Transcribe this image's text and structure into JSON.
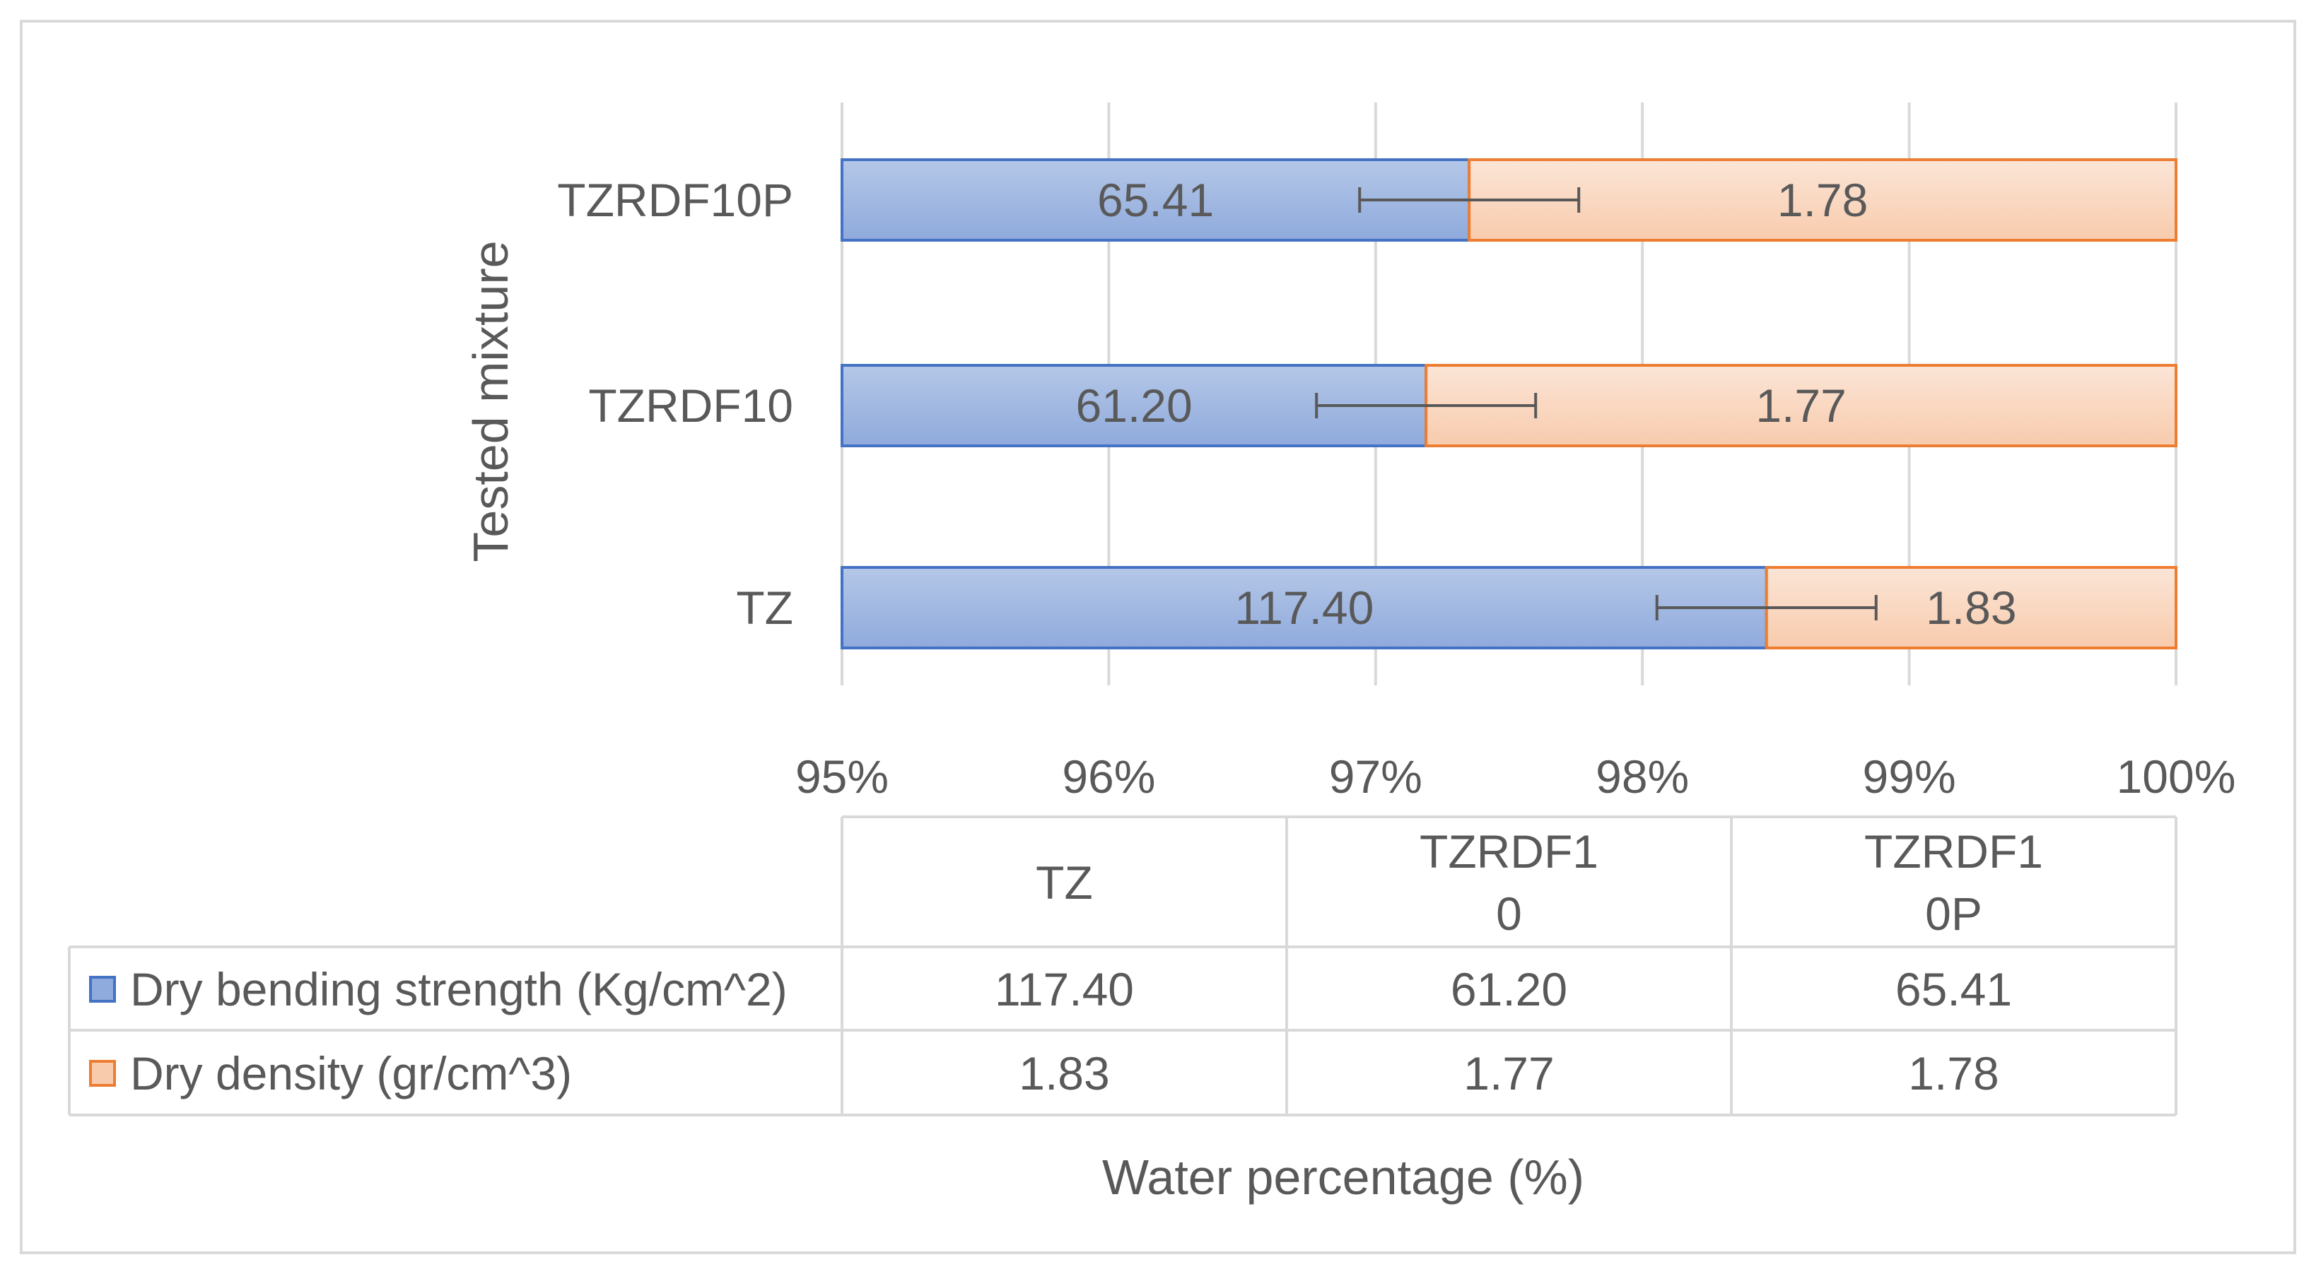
{
  "chart_data": {
    "type": "bar",
    "orientation": "horizontal",
    "stacked": "percent",
    "title": "",
    "xlabel": "Water percentage (%)",
    "ylabel": "Tested mixture",
    "xlim": [
      0.95,
      1.0
    ],
    "x_ticks": [
      "95%",
      "96%",
      "97%",
      "98%",
      "99%",
      "100%"
    ],
    "categories": [
      "TZ",
      "TZRDF10",
      "TZRDF10P"
    ],
    "series": [
      {
        "name": "Dry bending strength (Kg/cm^2)",
        "values": [
          117.4,
          61.2,
          65.41
        ],
        "labels": [
          "117.40",
          "61.20",
          "65.41"
        ],
        "color": "#4472c4",
        "fill_light": "#b4c7e7",
        "fill_dark": "#8faadc"
      },
      {
        "name": "Dry density (gr/cm^3)",
        "values": [
          1.83,
          1.77,
          1.78
        ],
        "labels": [
          "1.83",
          "1.77",
          "1.78"
        ],
        "color": "#ed7d31",
        "fill_light": "#fbe5d6",
        "fill_dark": "#f8cbad"
      }
    ],
    "error_bars": true,
    "grid": true,
    "data_table": {
      "columns": [
        [
          "TZ"
        ],
        [
          "TZRDF1",
          "0"
        ],
        [
          "TZRDF1",
          "0P"
        ]
      ],
      "rows": [
        {
          "legend": "Dry bending strength (Kg/cm^2)",
          "values": [
            "117.40",
            "61.20",
            "65.41"
          ]
        },
        {
          "legend": "Dry density (gr/cm^3)",
          "values": [
            "1.83",
            "1.77",
            "1.78"
          ]
        }
      ]
    }
  }
}
